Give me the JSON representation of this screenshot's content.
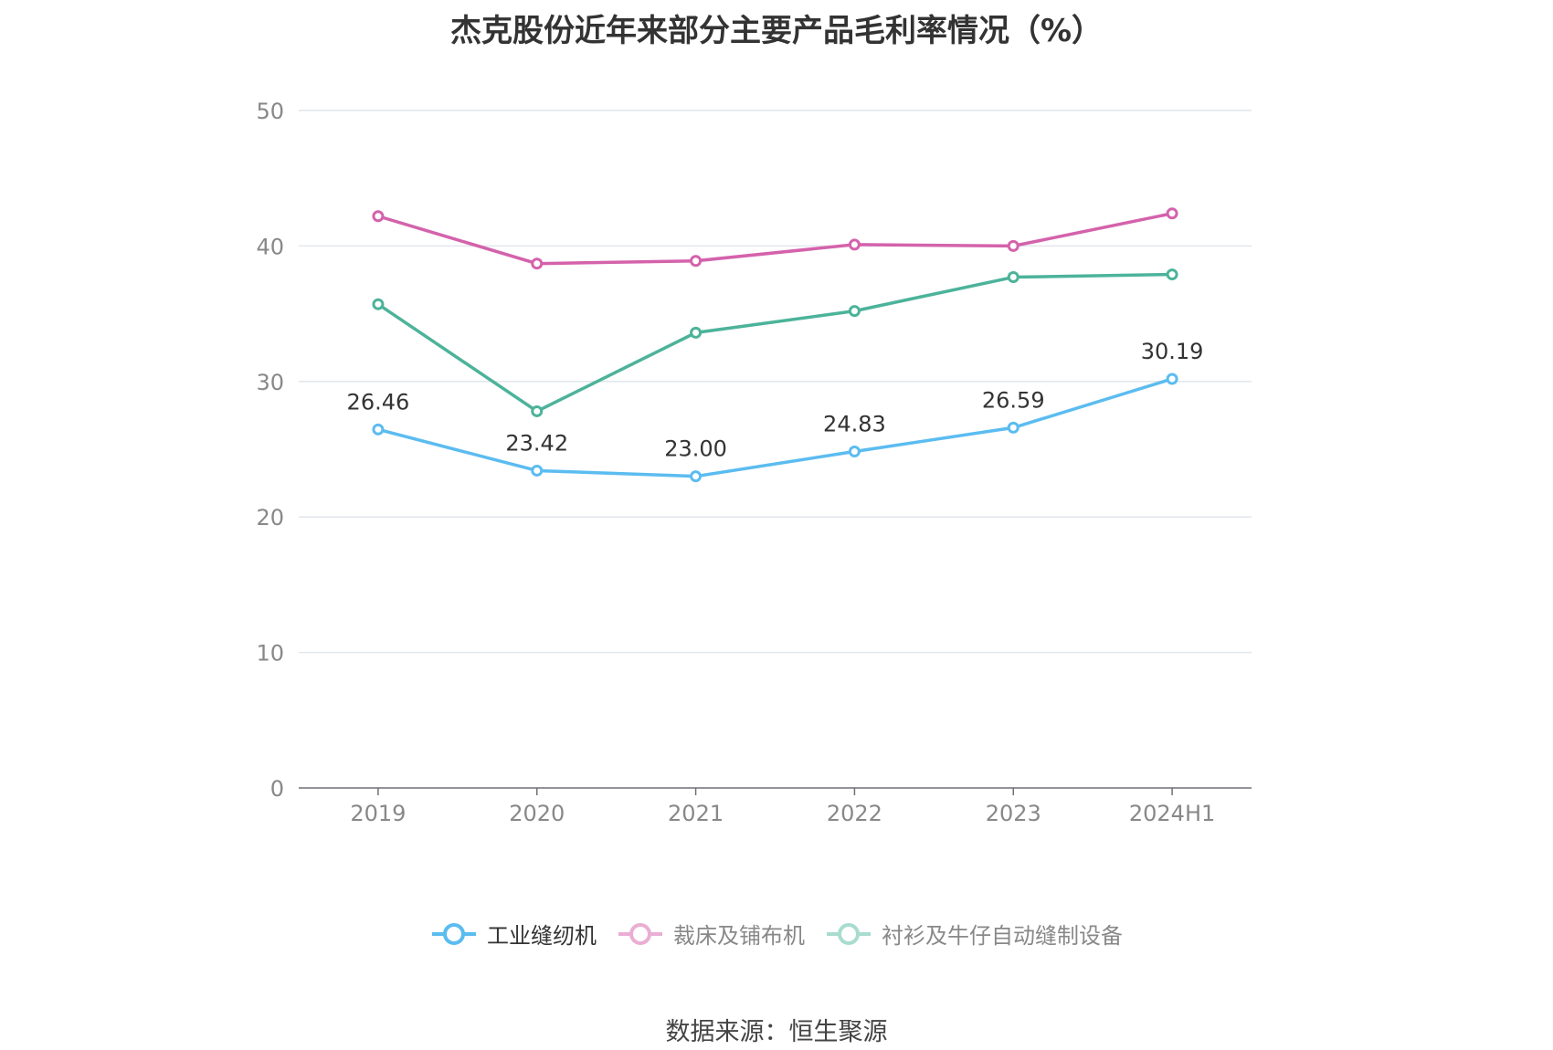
{
  "chart_data": {
    "type": "line",
    "title": "杰克股份近年来部分主要产品毛利率情况（%）",
    "categories": [
      "2019",
      "2020",
      "2021",
      "2022",
      "2023",
      "2024H1"
    ],
    "ylim": [
      0,
      50
    ],
    "yticks": [
      0,
      10,
      20,
      30,
      40,
      50
    ],
    "grid": true,
    "legend_position": "bottom",
    "series": [
      {
        "name": "工业缝纫机",
        "color": "#5bbcf0",
        "values": [
          26.46,
          23.42,
          23.0,
          24.83,
          26.59,
          30.19
        ],
        "labels": [
          "26.46",
          "23.42",
          "23.00",
          "24.83",
          "26.59",
          "30.19"
        ]
      },
      {
        "name": "裁床及铺布机",
        "color": "#d462ab",
        "values": [
          42.2,
          38.7,
          38.9,
          40.1,
          40.0,
          42.4
        ]
      },
      {
        "name": "衬衫及牛仔自动缝制设备",
        "color": "#4cb39a",
        "values": [
          35.7,
          27.8,
          33.6,
          35.2,
          37.7,
          37.9
        ]
      }
    ]
  },
  "legend": {
    "legend_colors": [
      "#5bbcf0",
      "#eaaed4",
      "#a9dccf"
    ],
    "text_colors": [
      "#333333",
      "#888888",
      "#888888"
    ]
  },
  "source": "数据来源：恒生聚源"
}
